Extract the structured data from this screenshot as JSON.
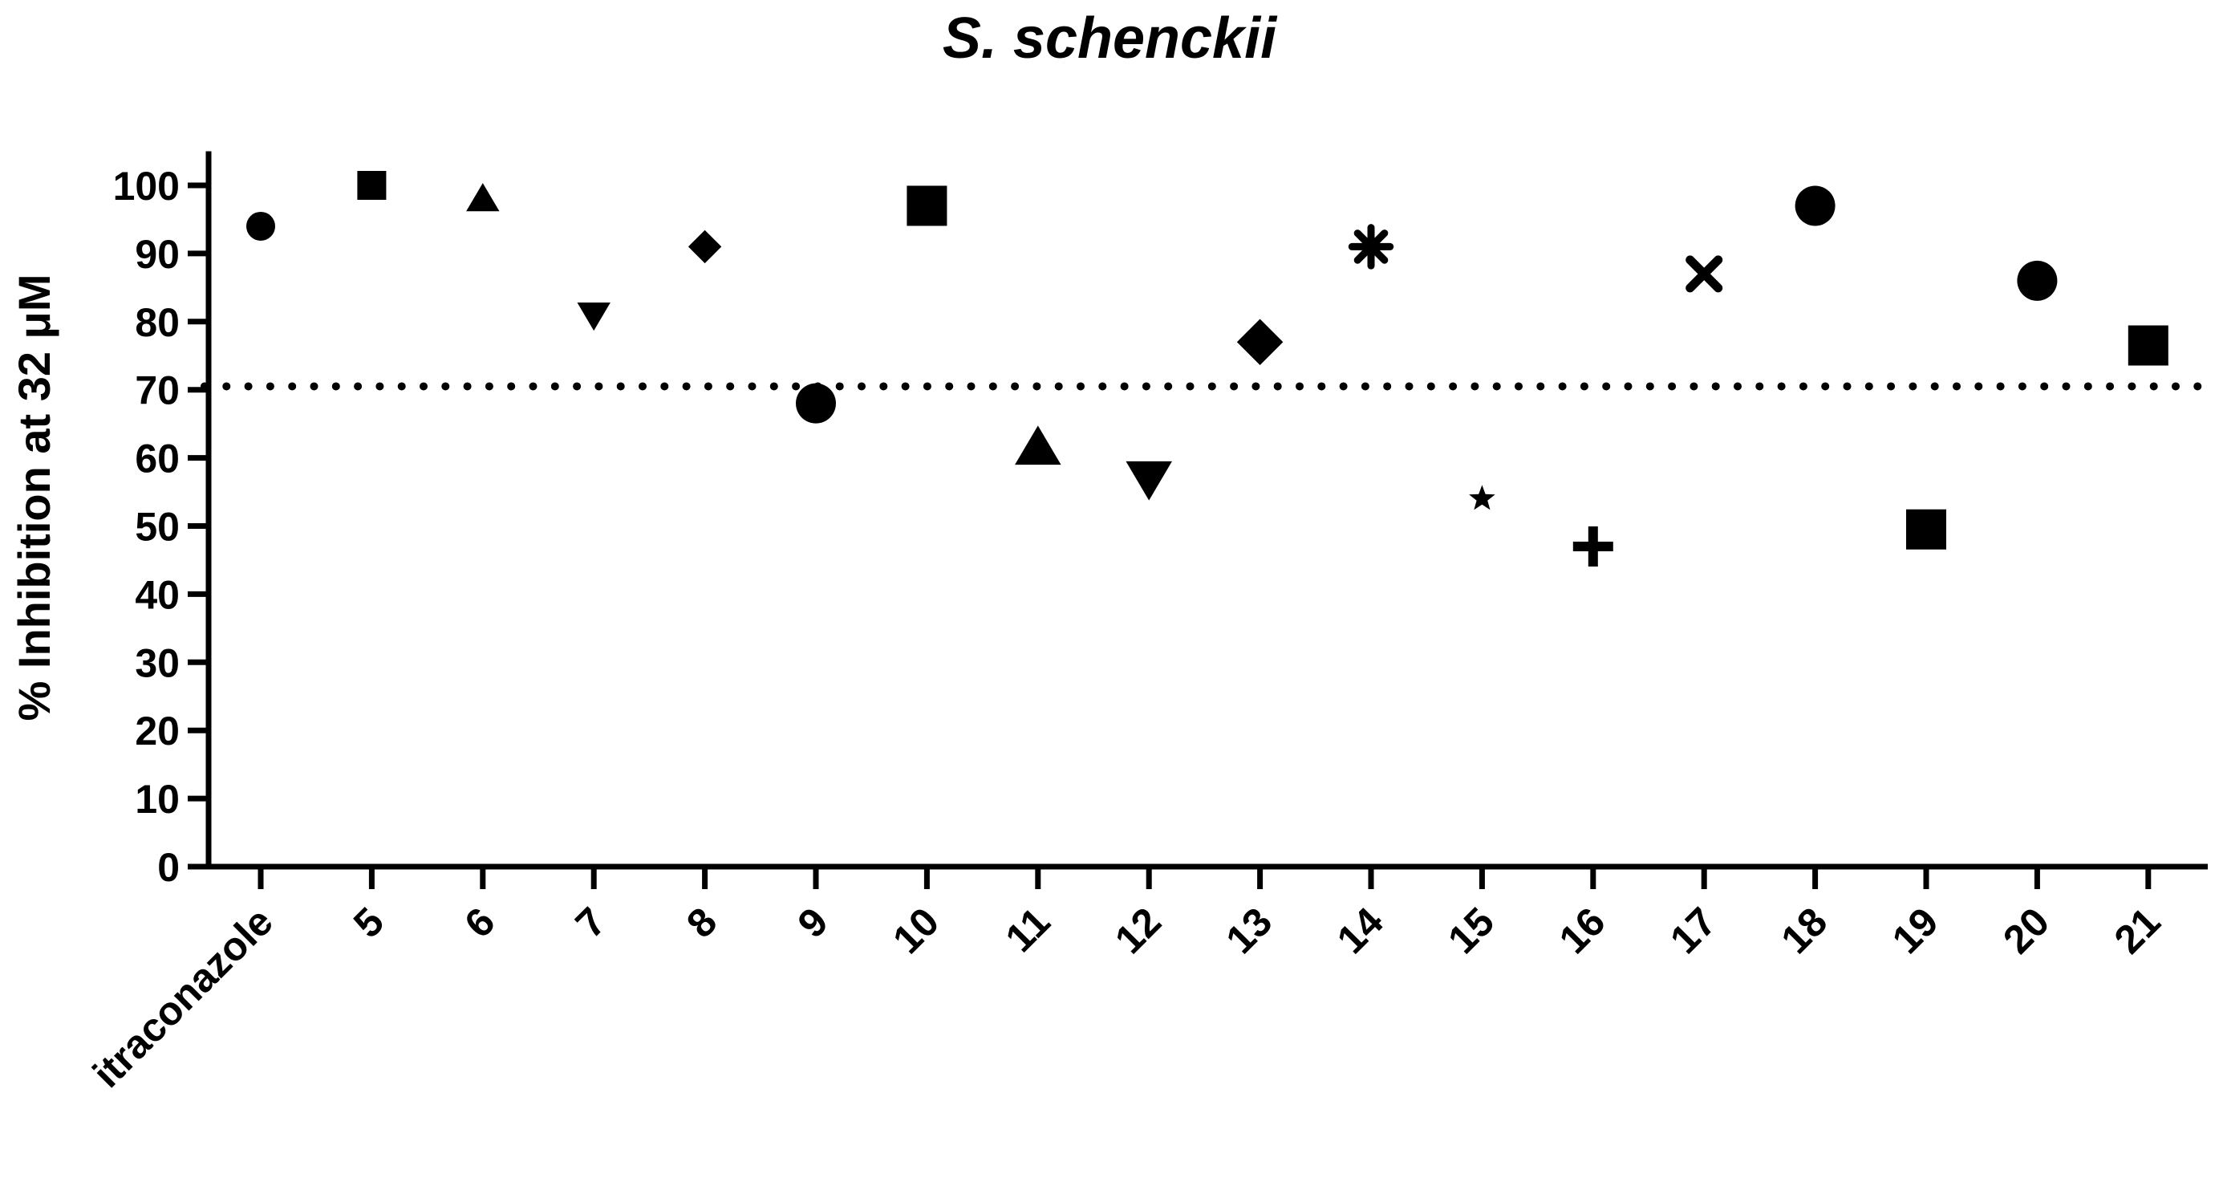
{
  "chart_data": {
    "type": "scatter",
    "title": "S. schenckii",
    "ylabel": "% Inhibition at 32 μM",
    "xlabel": "",
    "ylim": [
      0,
      105
    ],
    "yticks": [
      0,
      10,
      20,
      30,
      40,
      50,
      60,
      70,
      80,
      90,
      100
    ],
    "categories": [
      "itraconazole",
      "5",
      "6",
      "7",
      "8",
      "9",
      "10",
      "11",
      "12",
      "13",
      "14",
      "15",
      "16",
      "17",
      "18",
      "19",
      "20",
      "21"
    ],
    "values": [
      94,
      100,
      98,
      81,
      91,
      68,
      97,
      61.5,
      57,
      77,
      91,
      54,
      47,
      87,
      97,
      49.5,
      86,
      76.5
    ],
    "markers": [
      "circle",
      "square",
      "triangle-up",
      "triangle-down",
      "diamond",
      "circle",
      "square",
      "triangle-up",
      "triangle-down",
      "diamond",
      "asterisk",
      "star",
      "plus",
      "cross",
      "circle",
      "square",
      "circle",
      "square"
    ],
    "marker_scale": [
      "small",
      "small",
      "small",
      "small",
      "small",
      "large",
      "large",
      "large",
      "large",
      "large",
      "large",
      "small",
      "large",
      "large",
      "large",
      "large",
      "large",
      "large"
    ],
    "threshold": 70.5,
    "threshold_style": "dotted",
    "grid": false,
    "legend": "none",
    "color": "#000000"
  }
}
